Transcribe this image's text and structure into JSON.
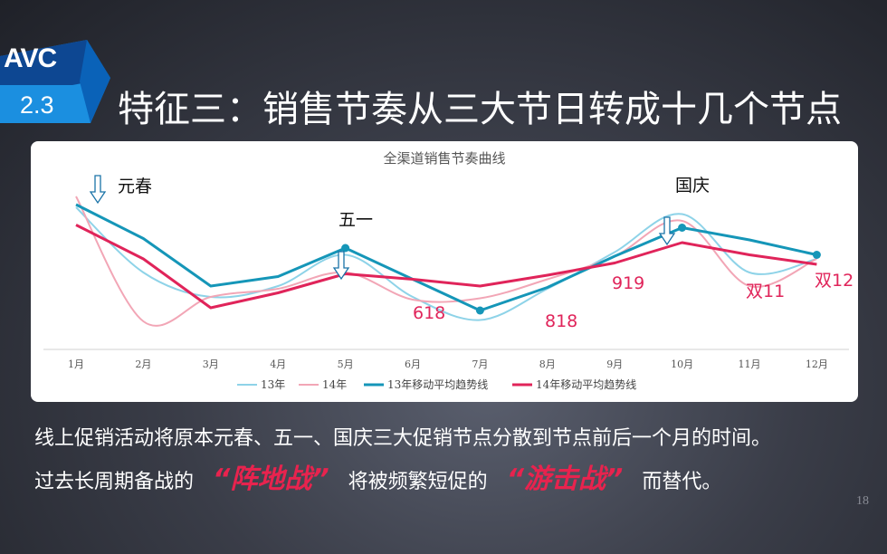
{
  "header": {
    "logo_text": "AVC",
    "section_number": "2.3",
    "title": "特征三：销售节奏从三大节日转成十几个节点"
  },
  "colors": {
    "series_13": "#8ed3e8",
    "series_14": "#f2a6b6",
    "ma_13": "#1596b8",
    "ma_14": "#e0245a",
    "annotation_red": "#e0245a",
    "highlight_red": "#e8234e"
  },
  "chart_data": {
    "type": "line",
    "title": "全渠道销售节奏曲线",
    "categories": [
      "1月",
      "2月",
      "3月",
      "4月",
      "5月",
      "6月",
      "7月",
      "8月",
      "9月",
      "10月",
      "11月",
      "12月"
    ],
    "y_axis_visible": false,
    "ylim": [
      0,
      100
    ],
    "legend_position": "bottom",
    "series": [
      {
        "name": "13年",
        "style": "smooth",
        "values": [
          88,
          40,
          22,
          30,
          53,
          22,
          5,
          28,
          55,
          83,
          40,
          50
        ]
      },
      {
        "name": "14年",
        "style": "smooth",
        "values": [
          96,
          4,
          22,
          28,
          40,
          20,
          21,
          35,
          52,
          78,
          30,
          50
        ]
      },
      {
        "name": "13年移动平均趋势线",
        "style": "straight",
        "values": [
          90,
          65,
          30,
          37,
          58,
          35,
          12,
          29,
          52,
          73,
          64,
          53
        ]
      },
      {
        "name": "14年移动平均趋势线",
        "style": "straight",
        "values": [
          75,
          50,
          14,
          25,
          39,
          35,
          30,
          38,
          47,
          62,
          53,
          46
        ]
      }
    ],
    "annotations": [
      {
        "text": "元春",
        "category_index": 0,
        "type": "holiday",
        "arrow": true
      },
      {
        "text": "五一",
        "category_index": 4,
        "type": "holiday",
        "arrow": true
      },
      {
        "text": "国庆",
        "category_index": 9,
        "type": "holiday",
        "arrow": true
      },
      {
        "text": "618",
        "category_index": 5,
        "type": "promo"
      },
      {
        "text": "818",
        "category_index": 7,
        "type": "promo"
      },
      {
        "text": "919",
        "category_index": 8,
        "type": "promo"
      },
      {
        "text": "双11",
        "category_index": 10,
        "type": "promo"
      },
      {
        "text": "双12",
        "category_index": 11,
        "type": "promo"
      }
    ]
  },
  "body": {
    "line1": "线上促销活动将原本元春、五一、国庆三大促销节点分散到节点前后一个月的时间。",
    "line2_part1": "过去长周期备战的",
    "highlight1": "“阵地战”",
    "line2_part2": "将被频繁短促的",
    "highlight2": "“游击战”",
    "line2_part3": "而替代。"
  },
  "page_number": "18"
}
